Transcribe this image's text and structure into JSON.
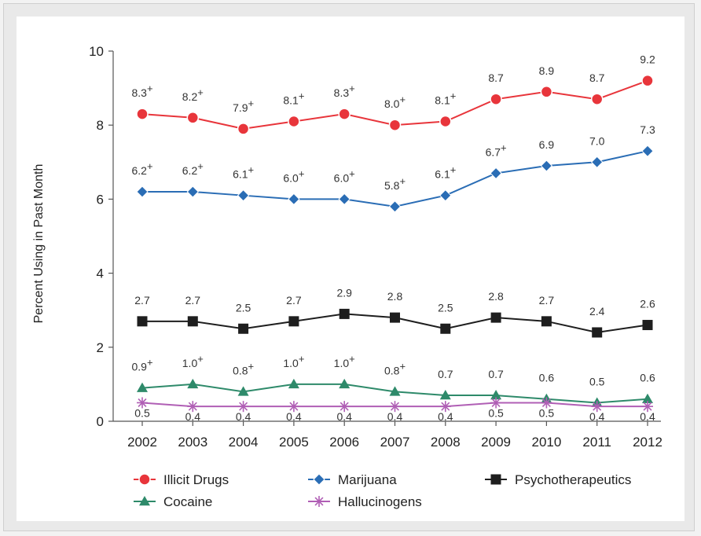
{
  "chart_data": {
    "type": "line",
    "title": "",
    "xlabel": "",
    "ylabel": "Percent Using in Past Month",
    "ylim": [
      0,
      10
    ],
    "yticks": [
      "0",
      "2",
      "4",
      "6",
      "8",
      "10"
    ],
    "categories": [
      "2002",
      "2003",
      "2004",
      "2005",
      "2006",
      "2007",
      "2008",
      "2009",
      "2010",
      "2011",
      "2012"
    ],
    "legend_position": "bottom",
    "grid": false,
    "series": [
      {
        "name": "Illicit Drugs",
        "color": "#e8353b",
        "marker": "circle",
        "values": [
          8.3,
          8.2,
          7.9,
          8.1,
          8.3,
          8.0,
          8.1,
          8.7,
          8.9,
          8.7,
          9.2
        ],
        "labels": [
          "8.3+",
          "8.2+",
          "7.9+",
          "8.1+",
          "8.3+",
          "8.0+",
          "8.1+",
          "8.7",
          "8.9",
          "8.7",
          "9.2"
        ]
      },
      {
        "name": "Marijuana",
        "color": "#2a6db5",
        "marker": "diamond",
        "values": [
          6.2,
          6.2,
          6.1,
          6.0,
          6.0,
          5.8,
          6.1,
          6.7,
          6.9,
          7.0,
          7.3
        ],
        "labels": [
          "6.2+",
          "6.2+",
          "6.1+",
          "6.0+",
          "6.0+",
          "5.8+",
          "6.1+",
          "6.7+",
          "6.9",
          "7.0",
          "7.3"
        ]
      },
      {
        "name": "Psychotherapeutics",
        "color": "#1e1e1e",
        "marker": "square",
        "values": [
          2.7,
          2.7,
          2.5,
          2.7,
          2.9,
          2.8,
          2.5,
          2.8,
          2.7,
          2.4,
          2.6
        ],
        "labels": [
          "2.7",
          "2.7",
          "2.5",
          "2.7",
          "2.9",
          "2.8",
          "2.5",
          "2.8",
          "2.7",
          "2.4",
          "2.6"
        ]
      },
      {
        "name": "Cocaine",
        "color": "#2e8a6a",
        "marker": "triangle",
        "values": [
          0.9,
          1.0,
          0.8,
          1.0,
          1.0,
          0.8,
          0.7,
          0.7,
          0.6,
          0.5,
          0.6
        ],
        "labels": [
          "0.9+",
          "1.0+",
          "0.8+",
          "1.0+",
          "1.0+",
          "0.8+",
          "0.7",
          "0.7",
          "0.6",
          "0.5",
          "0.6"
        ]
      },
      {
        "name": "Hallucinogens",
        "color": "#b05fb5",
        "marker": "star",
        "values": [
          0.5,
          0.4,
          0.4,
          0.4,
          0.4,
          0.4,
          0.4,
          0.5,
          0.5,
          0.4,
          0.4
        ],
        "labels": [
          "0.5",
          "0.4",
          "0.4",
          "0.4",
          "0.4",
          "0.4",
          "0.4",
          "0.5",
          "0.5",
          "0.4",
          "0.4"
        ]
      }
    ]
  }
}
